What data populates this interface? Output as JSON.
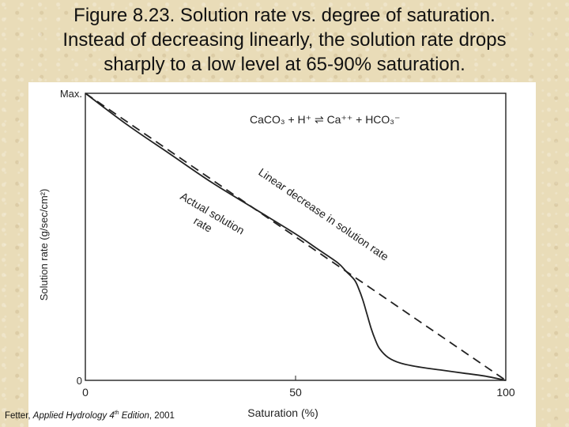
{
  "slide": {
    "title_lines": [
      "Figure 8.23.  Solution rate vs. degree of saturation.",
      "Instead of decreasing linearly, the solution rate drops",
      "sharply to a low level at 65-90% saturation."
    ]
  },
  "credit": {
    "author": "Fetter, ",
    "work": "Applied Hydrology 4",
    "sup": "th",
    "edition": " Edition",
    "year": ", 2001"
  },
  "chart_data": {
    "type": "line",
    "xlabel": "Saturation (%)",
    "ylabel": "Solution rate (g/sec/cm²)",
    "xlim": [
      0,
      100
    ],
    "ylim": [
      0,
      1
    ],
    "x_ticks": [
      {
        "value": 0,
        "label": "0"
      },
      {
        "value": 50,
        "label": "50"
      },
      {
        "value": 100,
        "label": "100"
      }
    ],
    "y_ticks": [
      {
        "value": 0,
        "label": "0"
      },
      {
        "value": 1,
        "label": "Max."
      }
    ],
    "grid": false,
    "equation": "CaCO₃ + H⁺ ⇌ Ca⁺⁺ + HCO₃⁻",
    "series": [
      {
        "name": "Linear decrease in solution rate",
        "style": "dashed",
        "x": [
          0,
          100
        ],
        "y": [
          1,
          0
        ]
      },
      {
        "name": "Actual solution rate",
        "style": "solid",
        "x": [
          0,
          10,
          20,
          30,
          40,
          50,
          55,
          60,
          62,
          64,
          65,
          66,
          67,
          68,
          69,
          70,
          72,
          75,
          80,
          85,
          90,
          95,
          100
        ],
        "y": [
          1,
          0.89,
          0.79,
          0.69,
          0.6,
          0.51,
          0.46,
          0.41,
          0.38,
          0.35,
          0.32,
          0.28,
          0.23,
          0.18,
          0.14,
          0.11,
          0.08,
          0.06,
          0.045,
          0.035,
          0.025,
          0.015,
          0
        ]
      }
    ]
  }
}
